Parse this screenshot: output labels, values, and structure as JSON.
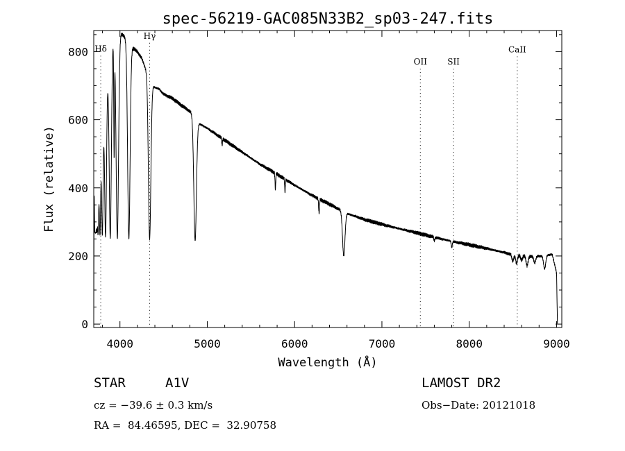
{
  "chart_data": {
    "type": "line",
    "title": "spec-56219-GAC085N33B2_sp03-247.fits",
    "xlabel": "Wavelength (Å)",
    "ylabel": "Flux (relative)",
    "xlim": [
      3700,
      9060
    ],
    "ylim": [
      -10,
      862
    ],
    "xticks": [
      4000,
      5000,
      6000,
      7000,
      8000,
      9000
    ],
    "yticks": [
      0,
      200,
      400,
      600,
      800
    ],
    "x_tick_labels": [
      "4000",
      "5000",
      "6000",
      "7000",
      "8000",
      "9000"
    ],
    "y_tick_labels": [
      "0",
      "200",
      "400",
      "600",
      "800"
    ],
    "continuum": [
      [
        3700,
        0
      ],
      [
        3705,
        470
      ],
      [
        3720,
        330
      ],
      [
        3750,
        430
      ],
      [
        3800,
        560
      ],
      [
        3850,
        700
      ],
      [
        3900,
        810
      ],
      [
        3950,
        855
      ],
      [
        4000,
        855
      ],
      [
        4050,
        845
      ],
      [
        4100,
        825
      ],
      [
        4150,
        810
      ],
      [
        4200,
        800
      ],
      [
        4250,
        780
      ],
      [
        4300,
        745
      ],
      [
        4350,
        705
      ],
      [
        4400,
        695
      ],
      [
        4450,
        690
      ],
      [
        4500,
        675
      ],
      [
        4600,
        663
      ],
      [
        4700,
        643
      ],
      [
        4800,
        625
      ],
      [
        4850,
        615
      ],
      [
        4900,
        590
      ],
      [
        5000,
        575
      ],
      [
        5200,
        540
      ],
      [
        5400,
        505
      ],
      [
        5600,
        470
      ],
      [
        5800,
        440
      ],
      [
        6000,
        408
      ],
      [
        6200,
        378
      ],
      [
        6400,
        352
      ],
      [
        6600,
        325
      ],
      [
        6800,
        307
      ],
      [
        7000,
        293
      ],
      [
        7200,
        280
      ],
      [
        7400,
        268
      ],
      [
        7600,
        255
      ],
      [
        7800,
        243
      ],
      [
        8000,
        233
      ],
      [
        8200,
        222
      ],
      [
        8400,
        210
      ],
      [
        8500,
        203
      ],
      [
        8700,
        198
      ],
      [
        8850,
        200
      ],
      [
        8950,
        205
      ],
      [
        9000,
        150
      ],
      [
        9010,
        0
      ]
    ],
    "absorption_lines": [
      {
        "wavelength": 3712,
        "min": 290,
        "width": 5
      },
      {
        "wavelength": 3722,
        "min": 280,
        "width": 5
      },
      {
        "wavelength": 3735,
        "min": 275,
        "width": 6
      },
      {
        "wavelength": 3750,
        "min": 270,
        "width": 6
      },
      {
        "wavelength": 3771,
        "min": 260,
        "width": 7
      },
      {
        "wavelength": 3798,
        "min": 260,
        "width": 8
      },
      {
        "wavelength": 3835,
        "min": 255,
        "width": 10
      },
      {
        "wavelength": 3889,
        "min": 252,
        "width": 12
      },
      {
        "wavelength": 3933,
        "min": 500,
        "width": 4
      },
      {
        "wavelength": 3970,
        "min": 252,
        "width": 14
      },
      {
        "wavelength": 4102,
        "min": 252,
        "width": 14
      },
      {
        "wavelength": 4340,
        "min": 250,
        "width": 14
      },
      {
        "wavelength": 4861,
        "min": 245,
        "width": 15
      },
      {
        "wavelength": 5170,
        "min": 525,
        "width": 4
      },
      {
        "wavelength": 5780,
        "min": 395,
        "width": 4
      },
      {
        "wavelength": 5890,
        "min": 388,
        "width": 4
      },
      {
        "wavelength": 6280,
        "min": 325,
        "width": 5
      },
      {
        "wavelength": 6563,
        "min": 200,
        "width": 14
      },
      {
        "wavelength": 7600,
        "min": 245,
        "width": 5
      },
      {
        "wavelength": 7800,
        "min": 225,
        "width": 6
      },
      {
        "wavelength": 8498,
        "min": 185,
        "width": 10
      },
      {
        "wavelength": 8542,
        "min": 178,
        "width": 10
      },
      {
        "wavelength": 8600,
        "min": 188,
        "width": 10
      },
      {
        "wavelength": 8662,
        "min": 172,
        "width": 11
      },
      {
        "wavelength": 8750,
        "min": 180,
        "width": 11
      },
      {
        "wavelength": 8863,
        "min": 162,
        "width": 12
      }
    ],
    "line_markers": [
      {
        "label": "Hδ",
        "wavelength": 3780,
        "label_y": 800
      },
      {
        "label": "Hγ",
        "wavelength": 4340,
        "label_y": 838
      },
      {
        "label": "OII",
        "wavelength": 7440,
        "label_y": 762
      },
      {
        "label": "SII",
        "wavelength": 7820,
        "label_y": 762
      },
      {
        "label": "CaII",
        "wavelength": 8550,
        "label_y": 798
      }
    ]
  },
  "info": {
    "object_type": "STAR",
    "subclass": "A1V",
    "survey": "LAMOST DR2",
    "cz": "cz = −39.6 ± 0.3 km/s",
    "obs_date": "Obs−Date: 20121018",
    "coords": "RA =  84.46595, DEC =  32.90758"
  }
}
